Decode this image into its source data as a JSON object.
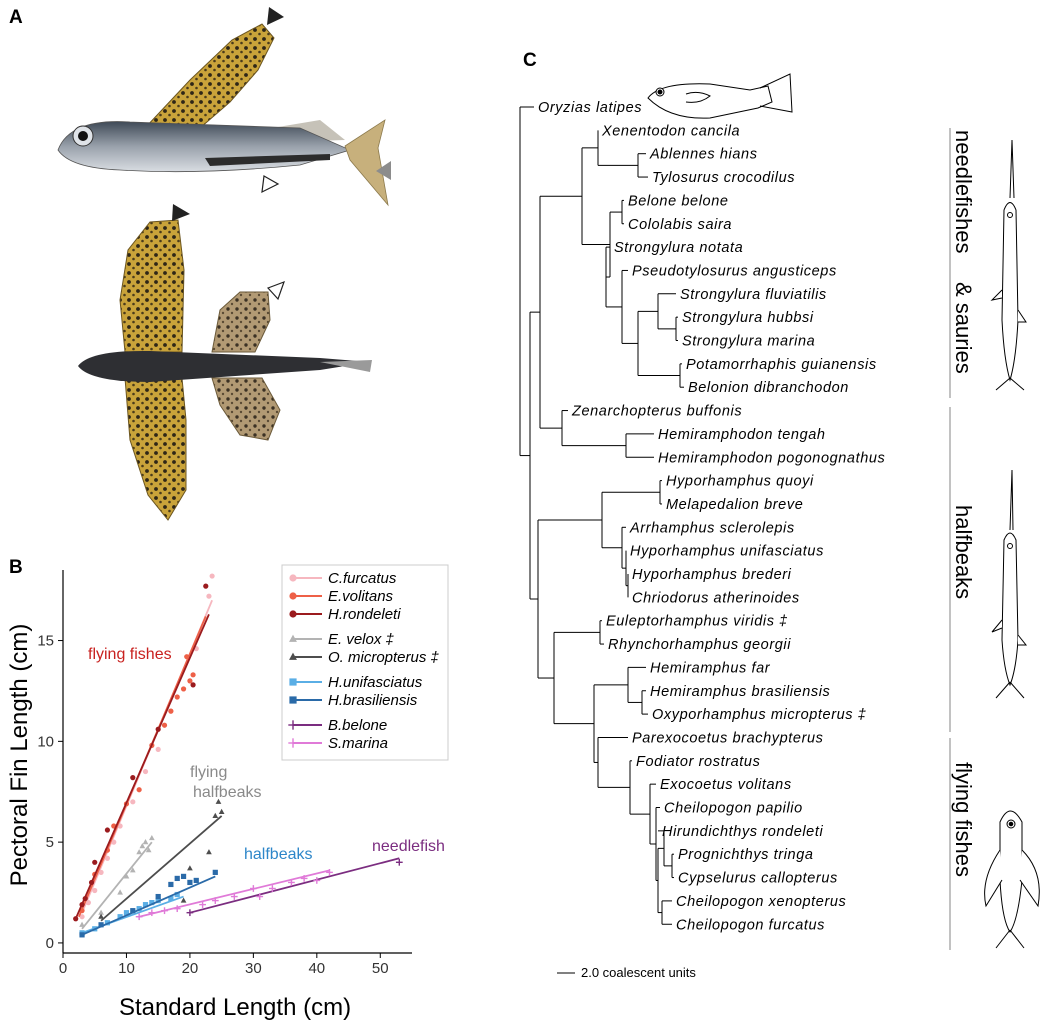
{
  "panels": {
    "a": "A",
    "b": "B",
    "c": "C"
  },
  "chart_data": {
    "type": "scatter",
    "xlabel": "Standard Length (cm)",
    "ylabel": "Pectoral Fin Length (cm)",
    "xlim": [
      0,
      55
    ],
    "ylim": [
      -0.5,
      18.5
    ],
    "xticks": [
      0,
      10,
      20,
      30,
      40,
      50
    ],
    "yticks": [
      0,
      5,
      10,
      15
    ],
    "grid": false,
    "legend_position": "top-right",
    "annotations": [
      {
        "text": "flying fishes",
        "color": "#c8211f"
      },
      {
        "text": "flying",
        "color": "#8a8a8a"
      },
      {
        "text": "halfbeaks",
        "color": "#8a8a8a"
      },
      {
        "text": "halfbeaks",
        "color": "#2d86c9"
      },
      {
        "text": "needlefish",
        "color": "#7b2d80"
      }
    ],
    "series": [
      {
        "name": "C.furcatus",
        "color": "#f6b7bf",
        "marker": "circle",
        "group": 0,
        "fit": [
          [
            3,
            1.5
          ],
          [
            23.5,
            17
          ]
        ],
        "points": [
          [
            3,
            1.3
          ],
          [
            4,
            2.0
          ],
          [
            5,
            2.6
          ],
          [
            6,
            3.5
          ],
          [
            7,
            4.2
          ],
          [
            8,
            5.0
          ],
          [
            9,
            5.8
          ],
          [
            11,
            7.0
          ],
          [
            13,
            8.5
          ],
          [
            15,
            9.6
          ],
          [
            17,
            11.5
          ],
          [
            19,
            12.6
          ],
          [
            21,
            14.6
          ],
          [
            23,
            17.2
          ],
          [
            23.5,
            18.2
          ]
        ]
      },
      {
        "name": "E.volitans",
        "color": "#ee6047",
        "marker": "circle",
        "group": 0,
        "fit": [
          [
            2.5,
            1.3
          ],
          [
            22.5,
            16.2
          ]
        ],
        "points": [
          [
            3,
            1.6
          ],
          [
            5,
            3.4
          ],
          [
            7,
            4.6
          ],
          [
            8,
            5.8
          ],
          [
            10,
            6.9
          ],
          [
            12,
            7.6
          ],
          [
            14,
            9.8
          ],
          [
            16,
            10.8
          ],
          [
            17,
            11.5
          ],
          [
            18,
            12.2
          ],
          [
            19,
            12.6
          ],
          [
            19.5,
            14.2
          ],
          [
            20,
            13.0
          ],
          [
            20.5,
            13.3
          ]
        ]
      },
      {
        "name": "H.rondeleti",
        "color": "#9b1b1e",
        "marker": "circle",
        "group": 0,
        "fit": [
          [
            2,
            1.2
          ],
          [
            23,
            16.3
          ]
        ],
        "points": [
          [
            2,
            1.2
          ],
          [
            3,
            1.9
          ],
          [
            3.5,
            2.2
          ],
          [
            4.5,
            3.0
          ],
          [
            5,
            4.0
          ],
          [
            7,
            5.6
          ],
          [
            11,
            8.2
          ],
          [
            15,
            10.6
          ],
          [
            20.5,
            12.8
          ],
          [
            22.5,
            17.7
          ]
        ]
      },
      {
        "name": "E. velox ‡",
        "color": "#b3b3b3",
        "marker": "triangle",
        "group": 1,
        "fit": [
          [
            3,
            0.7
          ],
          [
            14,
            5.0
          ]
        ],
        "points": [
          [
            3,
            0.9
          ],
          [
            6,
            1.5
          ],
          [
            9,
            2.5
          ],
          [
            10,
            3.3
          ],
          [
            11,
            3.6
          ],
          [
            12,
            4.5
          ],
          [
            12.5,
            4.8
          ],
          [
            13,
            5.0
          ],
          [
            13.5,
            4.6
          ],
          [
            14,
            5.2
          ]
        ]
      },
      {
        "name": "O. micropterus ‡",
        "color": "#4d4d4d",
        "marker": "triangle",
        "group": 1,
        "fit": [
          [
            6,
            1.1
          ],
          [
            25,
            6.3
          ]
        ],
        "points": [
          [
            6,
            1.3
          ],
          [
            19,
            2.1
          ],
          [
            20,
            3.7
          ],
          [
            23,
            4.5
          ],
          [
            24,
            6.3
          ],
          [
            24.5,
            7.0
          ],
          [
            25,
            6.5
          ]
        ]
      },
      {
        "name": "H.unifasciatus",
        "color": "#5aaee5",
        "marker": "square",
        "group": 2,
        "fit": [
          [
            3,
            0.5
          ],
          [
            19,
            2.3
          ]
        ],
        "points": [
          [
            3,
            0.5
          ],
          [
            5,
            0.7
          ],
          [
            7,
            1.0
          ],
          [
            9,
            1.3
          ],
          [
            10,
            1.5
          ],
          [
            12,
            1.7
          ],
          [
            13,
            1.9
          ],
          [
            14,
            2.0
          ],
          [
            15,
            2.1
          ],
          [
            17,
            2.2
          ],
          [
            18,
            2.4
          ]
        ]
      },
      {
        "name": "H.brasiliensis",
        "color": "#2a6aa8",
        "marker": "square",
        "group": 2,
        "fit": [
          [
            3,
            0.4
          ],
          [
            24,
            3.3
          ]
        ],
        "points": [
          [
            3,
            0.4
          ],
          [
            6,
            0.9
          ],
          [
            11,
            1.6
          ],
          [
            15,
            2.3
          ],
          [
            17,
            2.9
          ],
          [
            18,
            3.2
          ],
          [
            19,
            3.3
          ],
          [
            20,
            3.0
          ],
          [
            21,
            3.1
          ],
          [
            24,
            3.5
          ]
        ]
      },
      {
        "name": "B.belone",
        "color": "#7b2d80",
        "marker": "plus",
        "group": 3,
        "fit": [
          [
            20,
            1.5
          ],
          [
            53,
            4.2
          ]
        ],
        "points": [
          [
            20,
            1.5
          ],
          [
            53,
            4.0
          ]
        ]
      },
      {
        "name": "S.marina",
        "color": "#e07ad8",
        "marker": "plus",
        "group": 3,
        "fit": [
          [
            12,
            1.3
          ],
          [
            42,
            3.6
          ]
        ],
        "points": [
          [
            12,
            1.3
          ],
          [
            14,
            1.5
          ],
          [
            16,
            1.6
          ],
          [
            18,
            1.7
          ],
          [
            22,
            1.9
          ],
          [
            24,
            2.1
          ],
          [
            27,
            2.3
          ],
          [
            30,
            2.7
          ],
          [
            31,
            2.3
          ],
          [
            33,
            2.7
          ],
          [
            36,
            3.0
          ],
          [
            38,
            3.2
          ],
          [
            40,
            3.1
          ],
          [
            42,
            3.5
          ]
        ]
      }
    ]
  },
  "tree": {
    "taxa": [
      "Oryzias latipes",
      "Xenentodon cancila",
      "Ablennes hians",
      "Tylosurus crocodilus",
      "Belone belone",
      "Cololabis saira",
      "Strongylura notata",
      "Pseudotylosurus angusticeps",
      "Strongylura fluviatilis",
      "Strongylura hubbsi",
      "Strongylura marina",
      "Potamorrhaphis guianensis",
      "Belonion dibranchodon",
      "Zenarchopterus buffonis",
      "Hemiramphodon tengah",
      "Hemiramphodon pogonognathus",
      "Hyporhamphus quoyi",
      "Melapedalion breve",
      "Arrhamphus sclerolepis",
      "Hyporhamphus unifasciatus",
      "Hyporhamphus brederi",
      "Chriodorus atherinoides",
      "Euleptorhamphus viridis ‡",
      "Rhynchorhamphus georgii",
      "Hemiramphus far",
      "Hemiramphus brasiliensis",
      "Oxyporhamphus micropterus ‡",
      "Parexocoetus brachypterus",
      "Fodiator rostratus",
      "Exocoetus volitans",
      "Cheilopogon papilio",
      "Hirundichthys rondeleti",
      "Prognichthys tringa",
      "Cypselurus callopterus",
      "Cheilopogon xenopterus",
      "Cheilopogon furcatus"
    ],
    "clades": [
      {
        "label": "needlefishes",
        "label2": "& sauries"
      },
      {
        "label": "halfbeaks"
      },
      {
        "label": "flying fishes"
      }
    ],
    "scale_label": "2.0 coalescent units"
  }
}
